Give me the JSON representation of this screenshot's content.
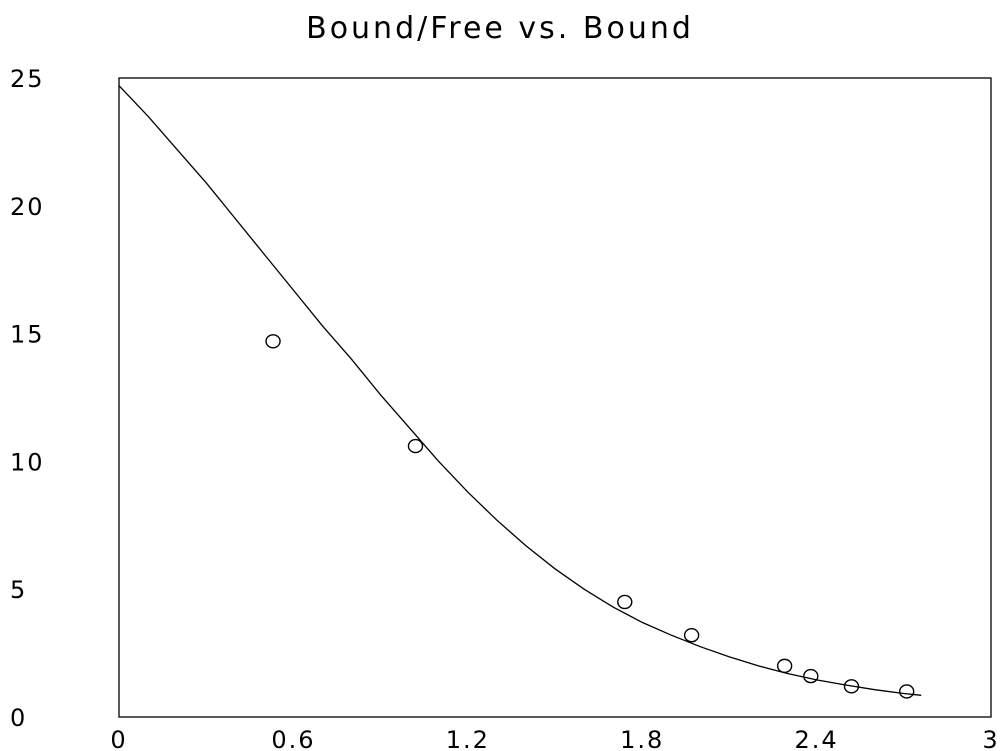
{
  "chart_data": {
    "type": "scatter",
    "title": "Bound/Free vs. Bound",
    "xlabel": "",
    "ylabel": "",
    "xlim": [
      0,
      3
    ],
    "ylim": [
      0,
      25
    ],
    "x_ticks": [
      0,
      0.6,
      1.2,
      1.8,
      2.4,
      3
    ],
    "x_tick_labels": [
      "0",
      "0.6",
      "1.2",
      "1.8",
      "2.4",
      "3"
    ],
    "y_ticks": [
      0,
      5,
      10,
      15,
      20,
      25
    ],
    "y_tick_labels": [
      "0",
      "5",
      "10",
      "15",
      "20",
      "25"
    ],
    "grid": false,
    "legend": "none",
    "series": [
      {
        "kind": "points",
        "marker": "circle",
        "x": [
          0.53,
          1.02,
          1.74,
          1.97,
          2.29,
          2.38,
          2.52,
          2.71
        ],
        "y": [
          14.7,
          10.6,
          4.5,
          3.2,
          2.0,
          1.6,
          1.2,
          1.0
        ]
      },
      {
        "kind": "fit-line",
        "x": [
          0.0,
          0.1,
          0.2,
          0.3,
          0.4,
          0.5,
          0.6,
          0.7,
          0.8,
          0.9,
          1.0,
          1.1,
          1.2,
          1.3,
          1.4,
          1.5,
          1.6,
          1.7,
          1.8,
          1.9,
          2.0,
          2.1,
          2.2,
          2.3,
          2.4,
          2.5,
          2.6,
          2.7,
          2.76
        ],
        "y": [
          24.7,
          23.5,
          22.2,
          20.9,
          19.5,
          18.1,
          16.7,
          15.3,
          14.0,
          12.6,
          11.3,
          10.0,
          8.8,
          7.7,
          6.7,
          5.8,
          5.0,
          4.3,
          3.7,
          3.2,
          2.75,
          2.35,
          2.0,
          1.7,
          1.45,
          1.25,
          1.07,
          0.92,
          0.85
        ]
      }
    ]
  }
}
